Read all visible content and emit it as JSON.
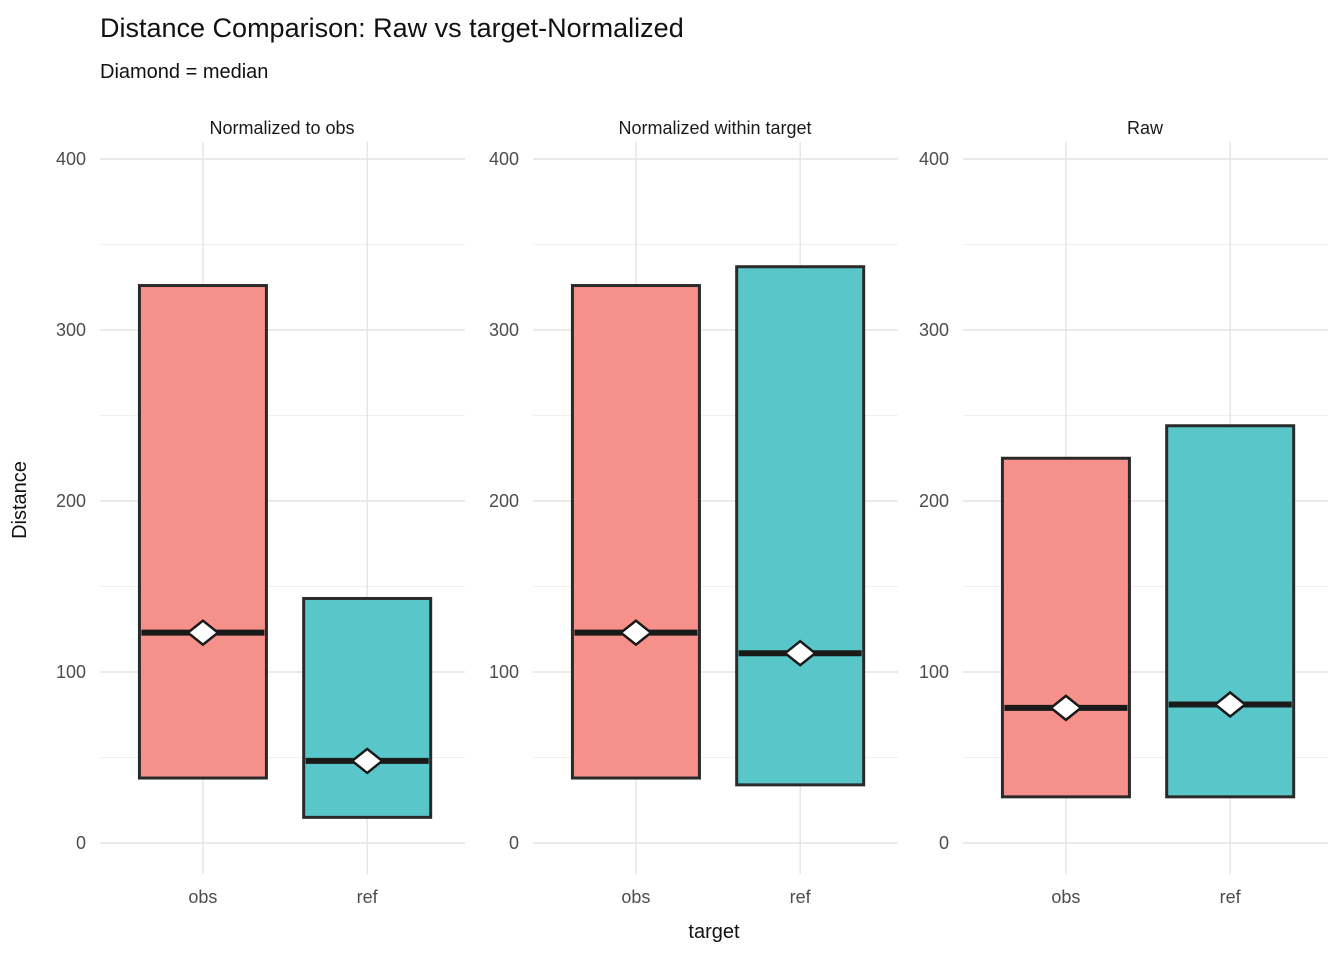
{
  "title": "Distance Comparison: Raw vs target-Normalized",
  "subtitle": "Diamond = median",
  "chart_data": {
    "type": "bar",
    "variant": "crossbar-range-with-median",
    "title": "Distance Comparison: Raw vs target-Normalized",
    "subtitle": "Diamond = median",
    "xlabel": "target",
    "ylabel": "Distance",
    "ylim": [
      0,
      400
    ],
    "y_major_ticks": [
      0,
      100,
      200,
      300,
      400
    ],
    "y_minor_ticks": [
      50,
      150,
      250,
      350
    ],
    "categories": [
      "obs",
      "ref"
    ],
    "grid": true,
    "legend_position": "none",
    "facets": [
      {
        "label": "Normalized to obs",
        "series": [
          {
            "target": "obs",
            "min": 38,
            "max": 326,
            "median": 123,
            "color": "#F6908A"
          },
          {
            "target": "ref",
            "min": 15,
            "max": 143,
            "median": 48,
            "color": "#59C7C9"
          }
        ]
      },
      {
        "label": "Normalized within target",
        "series": [
          {
            "target": "obs",
            "min": 38,
            "max": 326,
            "median": 123,
            "color": "#F6908A"
          },
          {
            "target": "ref",
            "min": 34,
            "max": 337,
            "median": 111,
            "color": "#59C7C9"
          }
        ]
      },
      {
        "label": "Raw",
        "series": [
          {
            "target": "obs",
            "min": 27,
            "max": 225,
            "median": 79,
            "color": "#F6908A"
          },
          {
            "target": "ref",
            "min": 27,
            "max": 244,
            "median": 81,
            "color": "#59C7C9"
          }
        ]
      }
    ],
    "colors": {
      "obs_fill": "#F6908A",
      "ref_fill": "#59C7C9",
      "bar_border": "#2A2A2A",
      "median_line": "#1A1A1A",
      "diamond_fill": "#FFFFFF",
      "grid_major": "#E4E4E4",
      "grid_minor": "#F0F0F0",
      "tick_text": "#4D4D4D",
      "text": "#111111",
      "background": "#FFFFFF"
    }
  }
}
